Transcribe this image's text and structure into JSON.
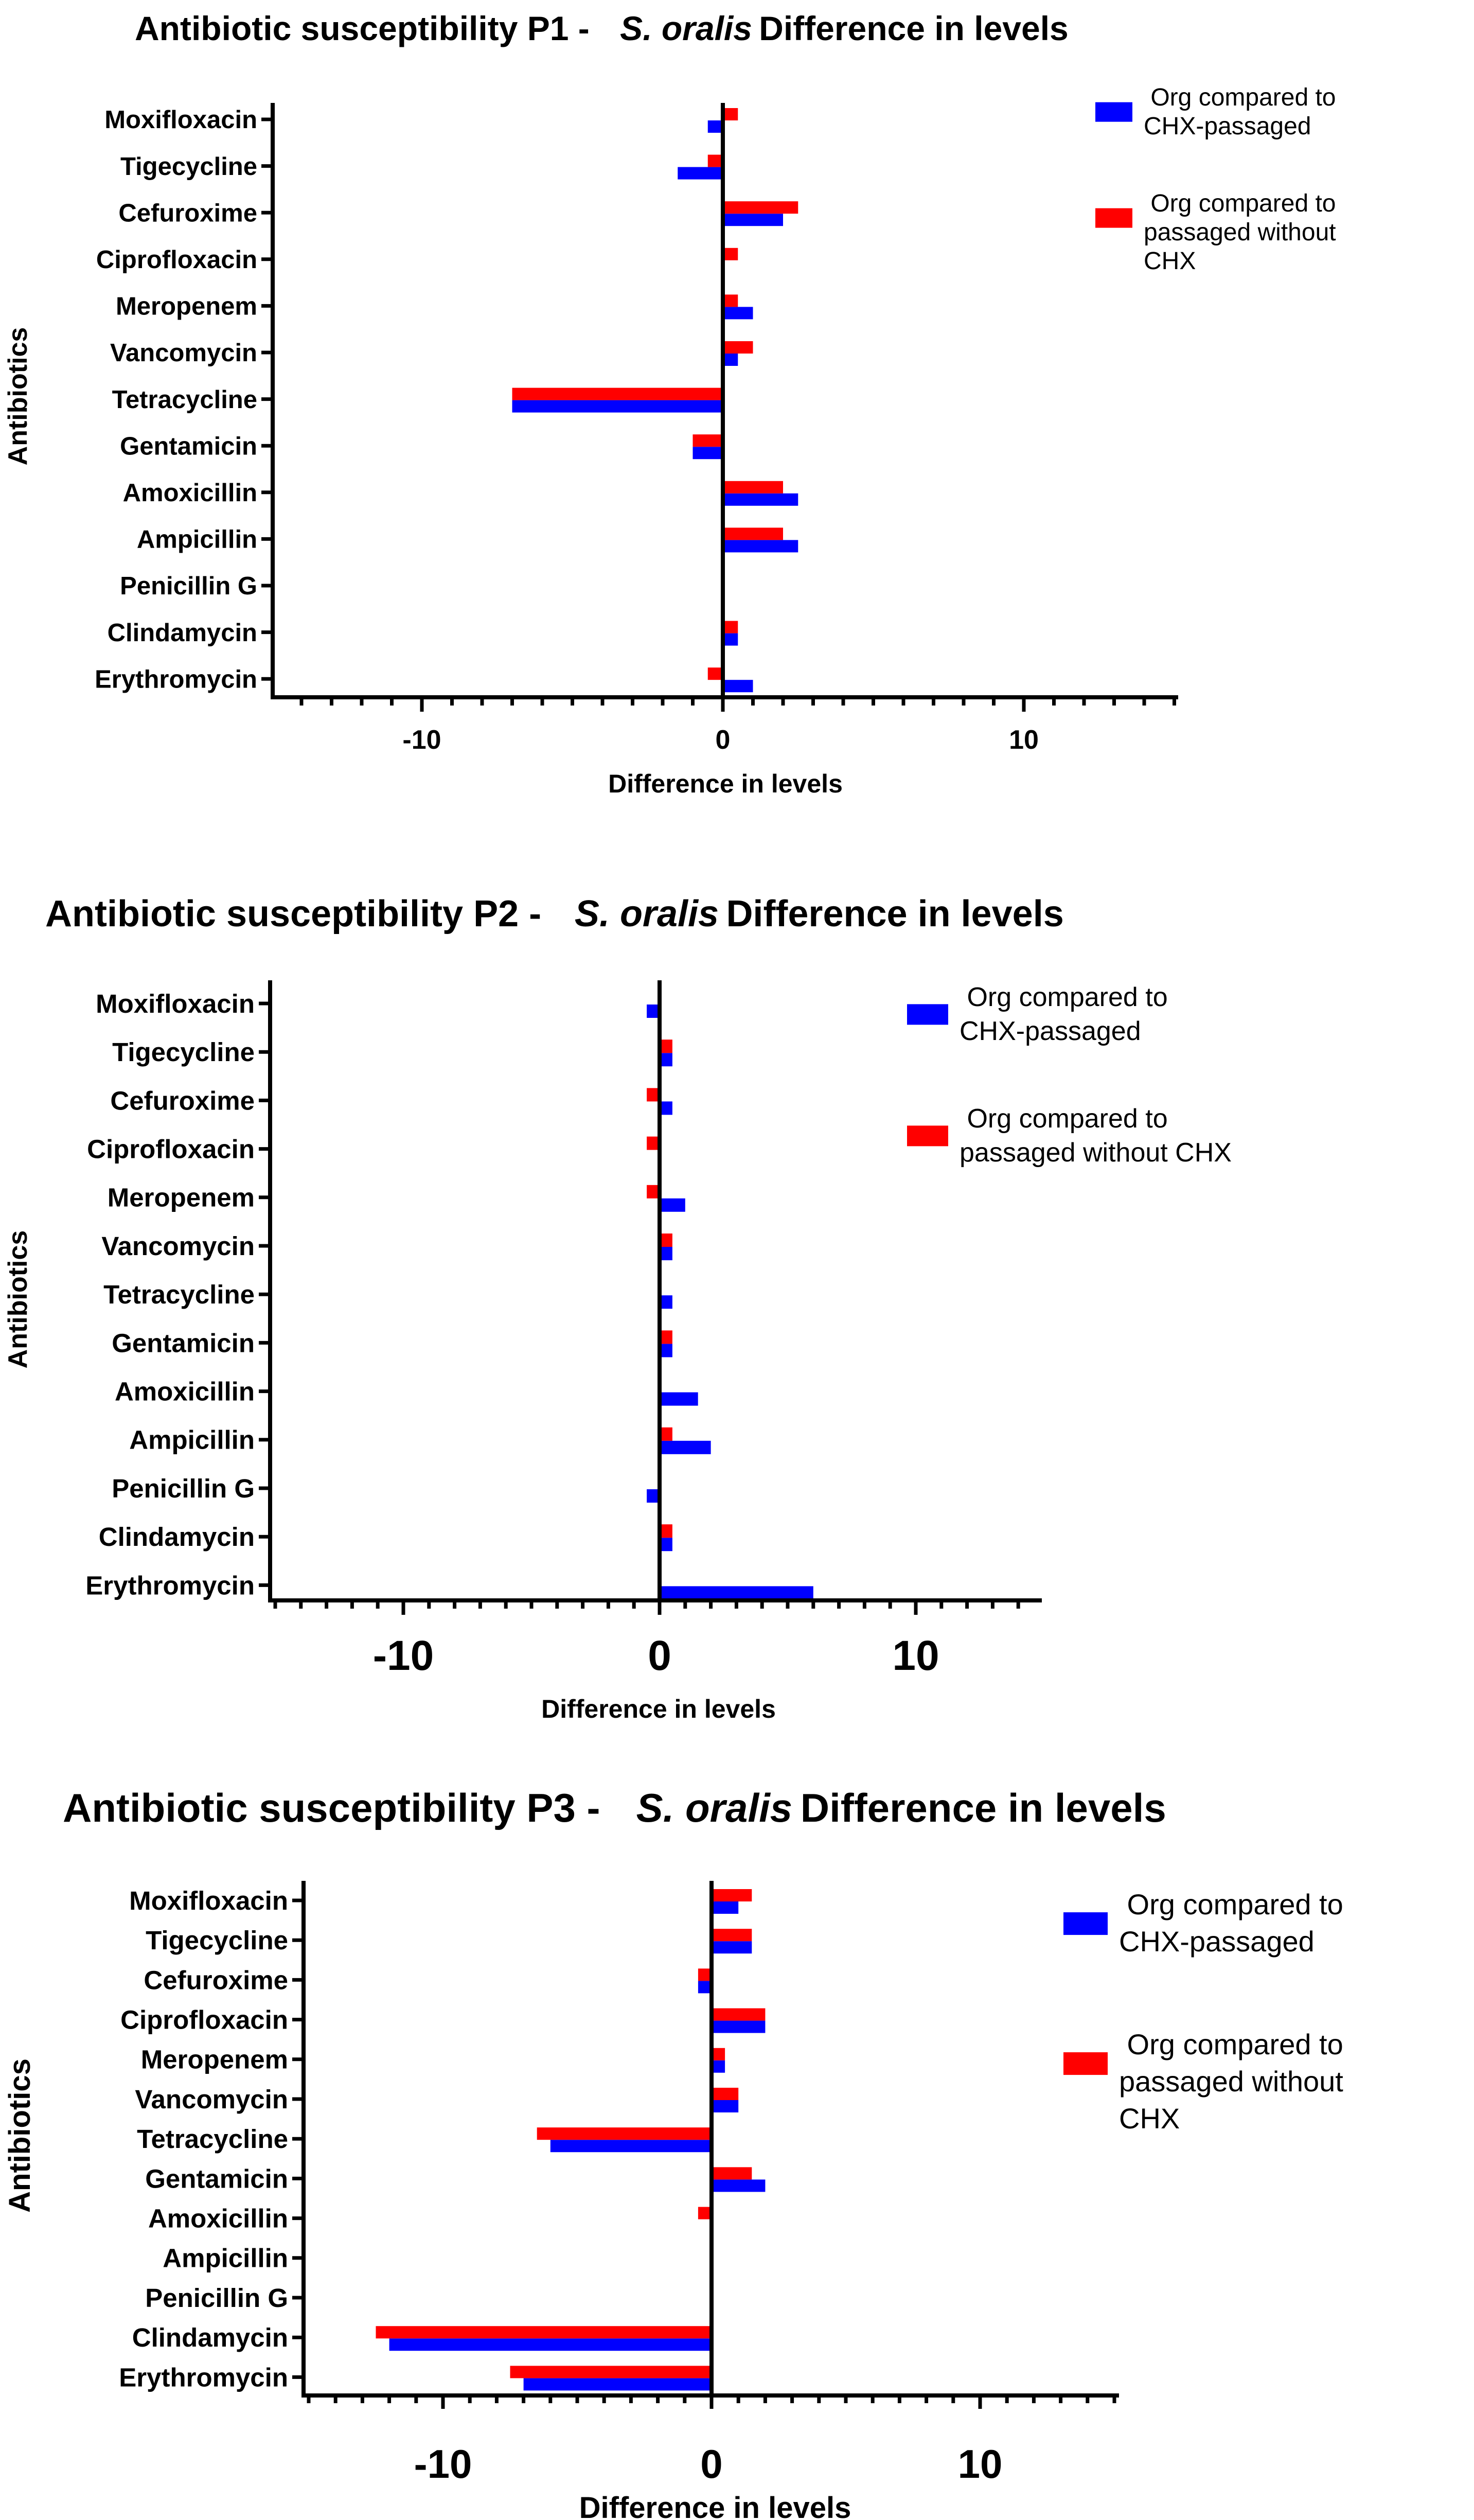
{
  "chart_data": [
    {
      "type": "bar",
      "orientation": "horizontal",
      "title_prefix": "Antibiotic susceptibility P1 -",
      "title_species": "S. oralis",
      "title_suffix": "Difference in levels",
      "xlabel": "Difference in levels",
      "ylabel": "Antibiotics",
      "xlim": [
        -15,
        15
      ],
      "xticks": [
        -10,
        0,
        10
      ],
      "legend_position": "top-right",
      "categories": [
        "Moxifloxacin",
        "Tigecycline",
        "Cefuroxime",
        "Ciprofloxacin",
        "Meropenem",
        "Vancomycin",
        "Tetracycline",
        "Gentamicin",
        "Amoxicillin",
        "Ampicillin",
        "Penicillin G",
        "Clindamycin",
        "Erythromycin"
      ],
      "series": [
        {
          "name": "Org compared to CHX-passaged",
          "legend_lines": [
            " Org compared to",
            "CHX-passaged"
          ],
          "color": "#0000ff",
          "values": [
            -0.5,
            -1.5,
            2,
            0,
            1,
            0.5,
            -7,
            -1,
            2.5,
            2.5,
            0,
            0.5,
            1
          ]
        },
        {
          "name": "Org compared to passaged without CHX",
          "legend_lines": [
            " Org compared to",
            "passaged without",
            "CHX"
          ],
          "color": "#ff0000",
          "values": [
            0.5,
            -0.5,
            2.5,
            0.5,
            0.5,
            1,
            -7,
            -1,
            2,
            2,
            0,
            0.5,
            -0.5
          ]
        }
      ]
    },
    {
      "type": "bar",
      "orientation": "horizontal",
      "title_prefix": "Antibiotic susceptibility P2 -",
      "title_species": "S. oralis",
      "title_suffix": "Difference in levels",
      "xlabel": "Difference in levels",
      "ylabel": "Antibiotics",
      "xlim": [
        -15,
        15
      ],
      "xticks": [
        -10,
        0,
        10
      ],
      "legend_position": "top-right",
      "categories": [
        "Moxifloxacin",
        "Tigecycline",
        "Cefuroxime",
        "Ciprofloxacin",
        "Meropenem",
        "Vancomycin",
        "Tetracycline",
        "Gentamicin",
        "Amoxicillin",
        "Ampicillin",
        "Penicillin G",
        "Clindamycin",
        "Erythromycin"
      ],
      "series": [
        {
          "name": "Org compared to CHX-passaged",
          "legend_lines": [
            " Org compared to",
            "CHX-passaged"
          ],
          "color": "#0000ff",
          "values": [
            -0.5,
            0.5,
            0.5,
            0,
            1,
            0.5,
            0.5,
            0.5,
            1.5,
            2,
            -0.5,
            0.5,
            6
          ]
        },
        {
          "name": "Org compared to passaged without CHX",
          "legend_lines": [
            " Org compared to",
            "passaged without CHX"
          ],
          "color": "#ff0000",
          "values": [
            0,
            0.5,
            -0.5,
            -0.5,
            -0.5,
            0.5,
            0,
            0.5,
            0,
            0.5,
            0,
            0.5,
            0
          ]
        }
      ]
    },
    {
      "type": "bar",
      "orientation": "horizontal",
      "title_prefix": "Antibiotic susceptibility P3 -",
      "title_species": "S. oralis",
      "title_suffix": "Difference in levels",
      "xlabel": "Difference in levels",
      "ylabel": "Antibiotics",
      "xlim": [
        -15,
        15
      ],
      "xticks": [
        -10,
        0,
        10
      ],
      "legend_position": "top-right",
      "categories": [
        "Moxifloxacin",
        "Tigecycline",
        "Cefuroxime",
        "Ciprofloxacin",
        "Meropenem",
        "Vancomycin",
        "Tetracycline",
        "Gentamicin",
        "Amoxicillin",
        "Ampicillin",
        "Penicillin G",
        "Clindamycin",
        "Erythromycin"
      ],
      "series": [
        {
          "name": "Org compared to CHX-passaged",
          "legend_lines": [
            " Org compared to",
            "CHX-passaged"
          ],
          "color": "#0000ff",
          "values": [
            1,
            1.5,
            -0.5,
            2,
            0.5,
            1,
            -6,
            2,
            0,
            0,
            0,
            -12,
            -7
          ]
        },
        {
          "name": "Org compared to passaged without CHX",
          "legend_lines": [
            " Org compared to",
            "passaged without",
            "CHX"
          ],
          "color": "#ff0000",
          "values": [
            1.5,
            1.5,
            -0.5,
            2,
            0.5,
            1,
            -6.5,
            1.5,
            -0.5,
            0,
            0,
            -12.5,
            -7.5
          ]
        }
      ]
    }
  ]
}
